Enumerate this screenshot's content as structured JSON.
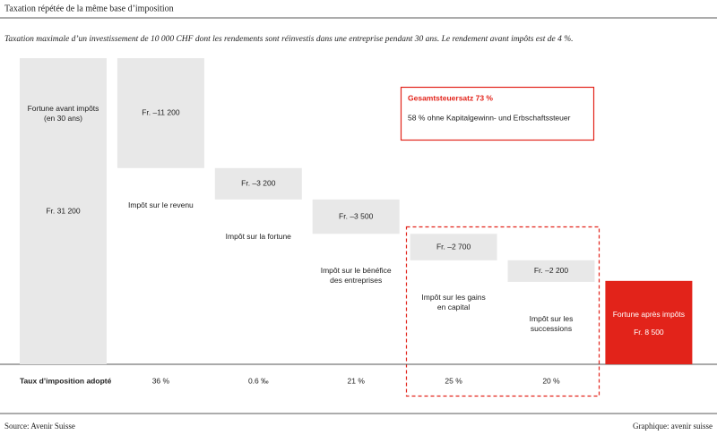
{
  "header": {
    "title": "Taxation répétée de la même base d’imposition",
    "subtitle": "Taxation maximale d’un investissement de 10 000 CHF dont les rendements sont réinvestis dans une entreprise pendant 30 ans. Le rendement avant impôts est de 4 %."
  },
  "chart_data": {
    "type": "waterfall",
    "categories": [
      "Fortune avant impôts\n(en 30 ans)",
      "Impôt sur le revenu",
      "Impôt sur la fortune",
      "Impôt sur le bénéfice\ndes entreprises",
      "Impôt sur les gains\nen capital",
      "Impôt sur les\nsuccessions",
      "Fortune après impôts"
    ],
    "values": [
      31200,
      -11200,
      -3200,
      -3500,
      -2700,
      -2200,
      8500
    ],
    "value_labels": [
      "Fr. 31 200",
      "Fr. –11 200",
      "Fr. –3 200",
      "Fr. –3 500",
      "Fr. –2 700",
      "Fr. –2 200",
      "Fr. 8 500"
    ],
    "measure": [
      "absolute",
      "relative",
      "relative",
      "relative",
      "relative",
      "relative",
      "total"
    ],
    "colors": [
      "#e8e8e8",
      "#e8e8e8",
      "#e8e8e8",
      "#e8e8e8",
      "#e8e8e8",
      "#e8e8e8",
      "#e2231a"
    ],
    "ylim": [
      0,
      31200
    ],
    "rates_label": "Taux d’imposition adopté",
    "rates": [
      null,
      "36 %",
      "0.6 ‰",
      "21 %",
      "25 %",
      "20 %",
      null
    ],
    "annotation": {
      "title": "Gesamtsteuersatz 73 %",
      "text": "58 % ohne Kapitalgewinn- und Erbschaftssteuer"
    }
  },
  "footer": {
    "source": "Source: Avenir Suisse",
    "credit": "Graphique: avenir suisse"
  }
}
